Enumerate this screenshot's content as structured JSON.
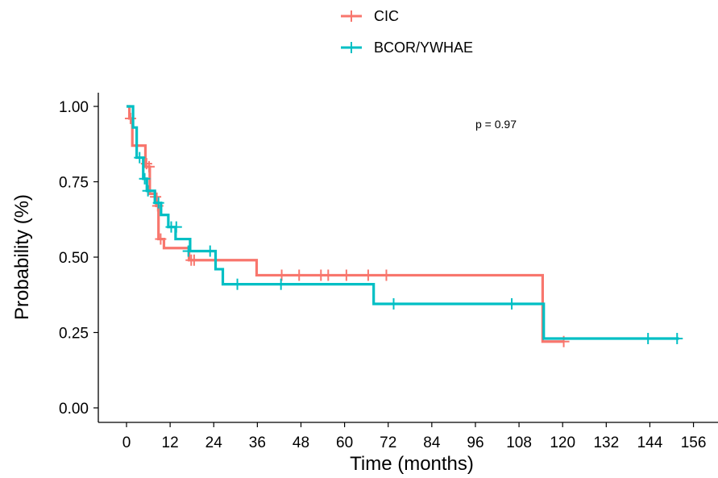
{
  "chart_data": {
    "type": "line",
    "subtype": "kaplan-meier step curve with censor marks",
    "xlabel": "Time (months)",
    "ylabel": "Probability (%)",
    "xlim": [
      -3,
      158
    ],
    "ylim": [
      0,
      1
    ],
    "x_ticks": [
      0,
      12,
      24,
      36,
      48,
      60,
      72,
      84,
      96,
      108,
      120,
      132,
      144,
      156
    ],
    "y_ticks": [
      0,
      0.25,
      0.5,
      0.75,
      1
    ],
    "x_tick_labels": [
      "0",
      "12",
      "24",
      "36",
      "48",
      "60",
      "72",
      "84",
      "96",
      "108",
      "120",
      "132",
      "144",
      "156"
    ],
    "y_tick_labels": [
      "0.00",
      "0.25",
      "0.50",
      "0.75",
      "1.00"
    ],
    "grid": false,
    "legend_position": "top",
    "annotation": "p = 0.97",
    "series": [
      {
        "name": "CIC",
        "color": "#F8766D",
        "steps": [
          [
            0,
            1.0
          ],
          [
            0.8,
            0.96
          ],
          [
            1.6,
            0.87
          ],
          [
            5.2,
            0.8
          ],
          [
            6.4,
            0.71
          ],
          [
            8.2,
            0.67
          ],
          [
            8.8,
            0.56
          ],
          [
            10.3,
            0.53
          ],
          [
            17.2,
            0.49
          ],
          [
            35.8,
            0.44
          ],
          [
            114.5,
            0.22
          ],
          [
            120.5,
            0.22
          ]
        ],
        "censored": [
          [
            1.1,
            0.96
          ],
          [
            5.5,
            0.81
          ],
          [
            6.2,
            0.8
          ],
          [
            8.0,
            0.7
          ],
          [
            8.6,
            0.67
          ],
          [
            9.4,
            0.56
          ],
          [
            17.8,
            0.49
          ],
          [
            18.6,
            0.49
          ],
          [
            42.7,
            0.44
          ],
          [
            47.5,
            0.44
          ],
          [
            53.5,
            0.44
          ],
          [
            55.5,
            0.44
          ],
          [
            60.5,
            0.44
          ],
          [
            66.5,
            0.44
          ],
          [
            71.5,
            0.44
          ],
          [
            120.3,
            0.22
          ]
        ]
      },
      {
        "name": "BCOR/YWHAE",
        "color": "#00BFC4",
        "steps": [
          [
            0,
            1.0
          ],
          [
            1.8,
            0.93
          ],
          [
            2.8,
            0.83
          ],
          [
            4.6,
            0.76
          ],
          [
            5.6,
            0.72
          ],
          [
            7.8,
            0.68
          ],
          [
            9.5,
            0.64
          ],
          [
            11.5,
            0.6
          ],
          [
            13.5,
            0.56
          ],
          [
            17.5,
            0.52
          ],
          [
            24.5,
            0.46
          ],
          [
            26.5,
            0.41
          ],
          [
            68.0,
            0.345
          ],
          [
            114.8,
            0.23
          ],
          [
            152.0,
            0.23
          ]
        ],
        "censored": [
          [
            3.6,
            0.83
          ],
          [
            5.0,
            0.76
          ],
          [
            5.9,
            0.72
          ],
          [
            8.8,
            0.68
          ],
          [
            12.3,
            0.6
          ],
          [
            13.7,
            0.6
          ],
          [
            17.0,
            0.52
          ],
          [
            23.0,
            0.52
          ],
          [
            30.5,
            0.41
          ],
          [
            42.5,
            0.41
          ],
          [
            73.5,
            0.345
          ],
          [
            106.0,
            0.345
          ],
          [
            143.5,
            0.23
          ],
          [
            151.5,
            0.23
          ]
        ]
      }
    ]
  }
}
